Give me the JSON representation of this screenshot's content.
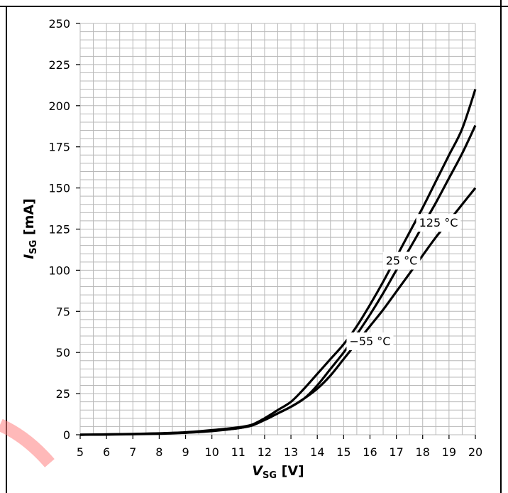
{
  "chart_data": {
    "type": "line",
    "xlabel": {
      "main": "V",
      "sub": "SG",
      "unit": " [V]"
    },
    "ylabel": {
      "main": "I",
      "sub": "SG",
      "unit": " [mA]"
    },
    "xlim": [
      5,
      20
    ],
    "ylim": [
      0,
      250
    ],
    "x_ticks": [
      "5",
      "6",
      "7",
      "8",
      "9",
      "10",
      "11",
      "12",
      "13",
      "14",
      "15",
      "16",
      "17",
      "18",
      "19",
      "20"
    ],
    "y_ticks": [
      "0",
      "25",
      "50",
      "75",
      "100",
      "125",
      "150",
      "175",
      "200",
      "225",
      "250"
    ],
    "grid": true,
    "series": [
      {
        "name": "125 °C",
        "x": [
          5,
          6,
          7,
          8,
          9,
          10,
          11,
          11.5,
          12,
          12.5,
          13,
          13.5,
          14,
          14.5,
          15,
          15.5,
          16,
          16.5,
          17,
          17.5,
          18,
          18.5,
          19,
          19.5,
          20
        ],
        "y": [
          0,
          0.1,
          0.3,
          0.6,
          1.2,
          2.2,
          4,
          5.5,
          9,
          13,
          17,
          22,
          28,
          36,
          46,
          56,
          66,
          76,
          87,
          98,
          109,
          120,
          130,
          140,
          150
        ]
      },
      {
        "name": "25 °C",
        "x": [
          5,
          6,
          7,
          8,
          9,
          10,
          11,
          11.5,
          12,
          12.5,
          13,
          13.5,
          14,
          14.5,
          15,
          15.5,
          16,
          16.5,
          17,
          17.5,
          18,
          18.5,
          19,
          19.5,
          20
        ],
        "y": [
          0,
          0.2,
          0.5,
          0.9,
          1.5,
          2.8,
          4.5,
          6,
          9,
          13,
          17,
          22,
          30,
          40,
          50,
          61,
          73,
          86,
          100,
          113,
          127,
          141,
          156,
          171,
          188
        ]
      },
      {
        "name": "−55 °C",
        "x": [
          5,
          6,
          7,
          8,
          9,
          10,
          11,
          11.5,
          12,
          12.5,
          13,
          13.5,
          14,
          14.5,
          15,
          15.5,
          16,
          16.5,
          17,
          17.5,
          18,
          18.5,
          19,
          19.5,
          20
        ],
        "y": [
          0,
          0.2,
          0.4,
          0.8,
          1.3,
          2.5,
          4,
          6,
          10,
          15,
          20,
          28,
          37,
          46,
          55,
          66,
          79,
          93,
          108,
          123,
          138,
          154,
          170,
          186,
          210
        ]
      }
    ],
    "annotations": [
      {
        "text": "125 °C",
        "x": 18.6,
        "y": 129
      },
      {
        "text": "25 °C",
        "x": 17.2,
        "y": 106
      },
      {
        "text": "−55 °C",
        "x": 16.0,
        "y": 57
      }
    ]
  }
}
